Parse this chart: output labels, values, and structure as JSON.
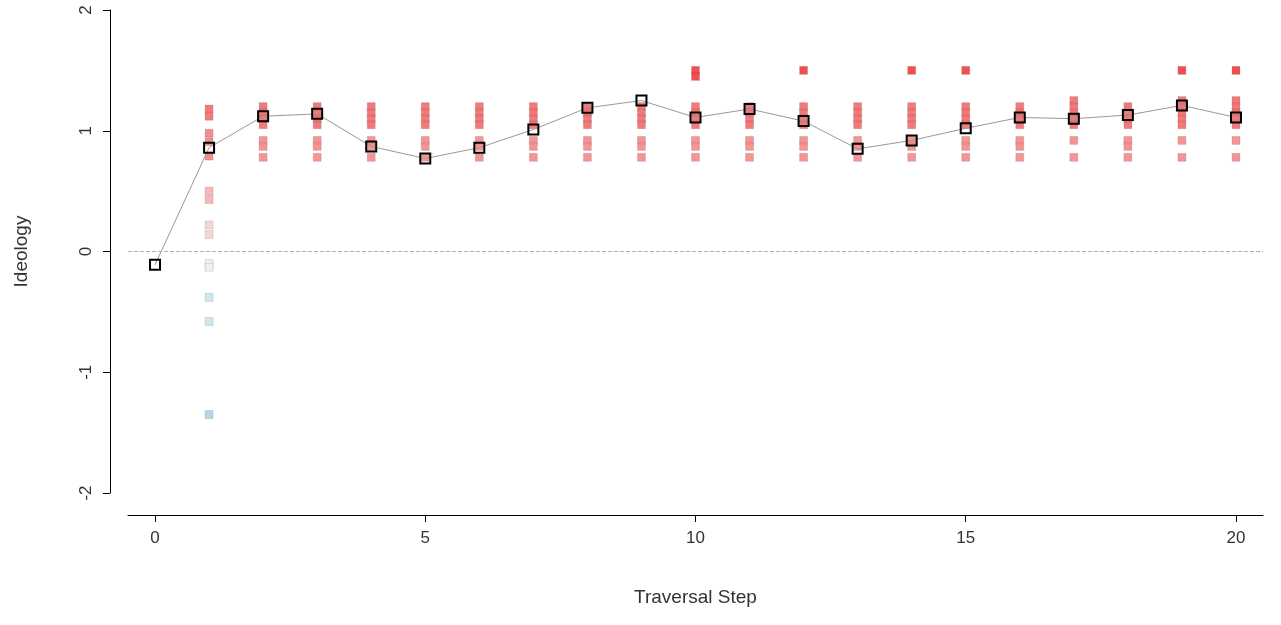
{
  "chart_data": {
    "type": "scatter",
    "xlabel": "Traversal Step",
    "ylabel": "Ideology",
    "xlim": [
      -0.5,
      20.5
    ],
    "xticks": [
      0,
      5,
      10,
      15,
      20
    ],
    "ylim": [
      -2,
      2
    ],
    "yticks": [
      -2,
      -1,
      0,
      1,
      2
    ],
    "marker": "square",
    "ref_lines": [
      {
        "axis": "y",
        "value": 0,
        "color": "#b0b0b0",
        "line_style": "dashed"
      }
    ],
    "series": [
      {
        "x": [
          1,
          1,
          1,
          1,
          1,
          1,
          1,
          1,
          1,
          1,
          1,
          1,
          1,
          1,
          2,
          2,
          2,
          2,
          2,
          2,
          2,
          3,
          3,
          3,
          3,
          3,
          3,
          3,
          4,
          4,
          4,
          4,
          4,
          4,
          4,
          5,
          5,
          5,
          5,
          5,
          5,
          5,
          6,
          6,
          6,
          6,
          6,
          6,
          6,
          7,
          7,
          7,
          7,
          7,
          7,
          7,
          8,
          8,
          8,
          8,
          8,
          8,
          8,
          9,
          9,
          9,
          9,
          9,
          9,
          9,
          10,
          10,
          10,
          10,
          10,
          10,
          10,
          10,
          10,
          11,
          11,
          11,
          11,
          11,
          11,
          11,
          12,
          12,
          12,
          12,
          12,
          12,
          12,
          12,
          13,
          13,
          13,
          13,
          13,
          13,
          13,
          14,
          14,
          14,
          14,
          14,
          14,
          14,
          14,
          15,
          15,
          15,
          15,
          15,
          15,
          15,
          15,
          16,
          16,
          16,
          16,
          16,
          16,
          16,
          17,
          17,
          17,
          17,
          17,
          17,
          17,
          18,
          18,
          18,
          18,
          18,
          18,
          18,
          19,
          19,
          19,
          19,
          19,
          19,
          19,
          19,
          20,
          20,
          20,
          20,
          20,
          20,
          20,
          20
        ],
        "values": [
          1.18,
          1.12,
          0.98,
          0.91,
          0.79,
          0.5,
          0.43,
          0.22,
          0.14,
          -0.1,
          -0.13,
          -0.38,
          -0.58,
          -1.35,
          1.2,
          1.15,
          1.1,
          1.05,
          0.92,
          0.87,
          0.78,
          1.2,
          1.15,
          1.1,
          1.05,
          0.92,
          0.87,
          0.78,
          1.2,
          1.15,
          1.1,
          1.05,
          0.92,
          0.87,
          0.78,
          1.2,
          1.15,
          1.1,
          1.05,
          0.92,
          0.87,
          0.78,
          1.2,
          1.15,
          1.1,
          1.05,
          0.92,
          0.87,
          0.78,
          1.2,
          1.15,
          1.1,
          1.05,
          0.92,
          0.87,
          0.78,
          1.2,
          1.15,
          1.1,
          1.05,
          0.92,
          0.87,
          0.78,
          1.2,
          1.15,
          1.1,
          1.05,
          0.92,
          0.87,
          0.78,
          1.5,
          1.45,
          1.2,
          1.15,
          1.1,
          1.05,
          0.92,
          0.87,
          0.78,
          1.2,
          1.15,
          1.1,
          1.05,
          0.92,
          0.87,
          0.78,
          1.5,
          1.2,
          1.15,
          1.1,
          1.05,
          0.92,
          0.87,
          0.78,
          1.2,
          1.15,
          1.1,
          1.05,
          0.92,
          0.87,
          0.78,
          1.5,
          1.2,
          1.15,
          1.1,
          1.05,
          0.92,
          0.87,
          0.78,
          1.5,
          1.2,
          1.15,
          1.1,
          1.05,
          0.92,
          0.87,
          0.78,
          1.2,
          1.15,
          1.1,
          1.05,
          0.92,
          0.87,
          0.78,
          1.25,
          1.2,
          1.15,
          1.1,
          1.05,
          0.92,
          0.78,
          1.2,
          1.15,
          1.1,
          1.05,
          0.92,
          0.87,
          0.78,
          1.5,
          1.25,
          1.2,
          1.15,
          1.1,
          1.05,
          0.92,
          0.78,
          1.5,
          1.25,
          1.2,
          1.15,
          1.1,
          1.05,
          0.92,
          0.78
        ],
        "colors": [
          "#f26b6b",
          "#f26b6b",
          "#f48080",
          "#f48080",
          "#f48080",
          "#f7b0b0",
          "#f7b0b0",
          "#f6d0d0",
          "#f6d0d0",
          "#eeeeee",
          "#eeeeee",
          "#c8e4f0",
          "#c8e4f0",
          "#a8d4e8",
          "#f26b6b",
          "#f26b6b",
          "#f26b6b",
          "#f26b6b",
          "#f58888",
          "#f58888",
          "#f58888",
          "#f26b6b",
          "#f26b6b",
          "#f26b6b",
          "#f26b6b",
          "#f58888",
          "#f58888",
          "#f58888",
          "#f26b6b",
          "#f26b6b",
          "#f26b6b",
          "#f26b6b",
          "#f58888",
          "#f58888",
          "#f58888",
          "#f26b6b",
          "#f26b6b",
          "#f26b6b",
          "#f26b6b",
          "#f58888",
          "#f58888",
          "#f58888",
          "#f26b6b",
          "#f26b6b",
          "#f26b6b",
          "#f26b6b",
          "#f58888",
          "#f58888",
          "#f58888",
          "#f26b6b",
          "#f26b6b",
          "#f26b6b",
          "#f26b6b",
          "#f58888",
          "#f58888",
          "#f58888",
          "#f26b6b",
          "#f26b6b",
          "#f26b6b",
          "#f26b6b",
          "#f58888",
          "#f58888",
          "#f58888",
          "#f26b6b",
          "#f26b6b",
          "#f26b6b",
          "#f26b6b",
          "#f58888",
          "#f58888",
          "#f58888",
          "#f03c3c",
          "#f03c3c",
          "#f26b6b",
          "#f26b6b",
          "#f26b6b",
          "#f26b6b",
          "#f58888",
          "#f58888",
          "#f58888",
          "#f26b6b",
          "#f26b6b",
          "#f26b6b",
          "#f26b6b",
          "#f58888",
          "#f58888",
          "#f58888",
          "#f03c3c",
          "#f26b6b",
          "#f26b6b",
          "#f26b6b",
          "#f26b6b",
          "#f58888",
          "#f58888",
          "#f58888",
          "#f26b6b",
          "#f26b6b",
          "#f26b6b",
          "#f26b6b",
          "#f58888",
          "#f58888",
          "#f58888",
          "#f03c3c",
          "#f26b6b",
          "#f26b6b",
          "#f26b6b",
          "#f26b6b",
          "#f58888",
          "#f58888",
          "#f58888",
          "#f03c3c",
          "#f26b6b",
          "#f26b6b",
          "#f26b6b",
          "#f26b6b",
          "#f58888",
          "#f58888",
          "#f58888",
          "#f26b6b",
          "#f26b6b",
          "#f26b6b",
          "#f26b6b",
          "#f58888",
          "#f58888",
          "#f58888",
          "#f26b6b",
          "#f26b6b",
          "#f26b6b",
          "#f26b6b",
          "#f26b6b",
          "#f58888",
          "#f58888",
          "#f26b6b",
          "#f26b6b",
          "#f26b6b",
          "#f26b6b",
          "#f58888",
          "#f58888",
          "#f58888",
          "#f03c3c",
          "#f26b6b",
          "#f26b6b",
          "#f26b6b",
          "#f26b6b",
          "#f26b6b",
          "#f58888",
          "#f58888",
          "#f03c3c",
          "#f26b6b",
          "#f26b6b",
          "#f26b6b",
          "#f26b6b",
          "#f26b6b",
          "#f58888",
          "#f58888"
        ]
      },
      {
        "type": "line",
        "color": "#999999",
        "x": [
          0,
          1,
          2,
          3,
          4,
          5,
          6,
          7,
          8,
          9,
          10,
          11,
          12,
          13,
          14,
          15,
          16,
          17,
          18,
          19,
          20
        ],
        "values": [
          -0.11,
          0.86,
          1.12,
          1.14,
          0.87,
          0.77,
          0.86,
          1.01,
          1.19,
          1.25,
          1.11,
          1.18,
          1.08,
          0.85,
          0.92,
          1.02,
          1.11,
          1.1,
          1.13,
          1.21,
          1.11
        ]
      }
    ]
  }
}
